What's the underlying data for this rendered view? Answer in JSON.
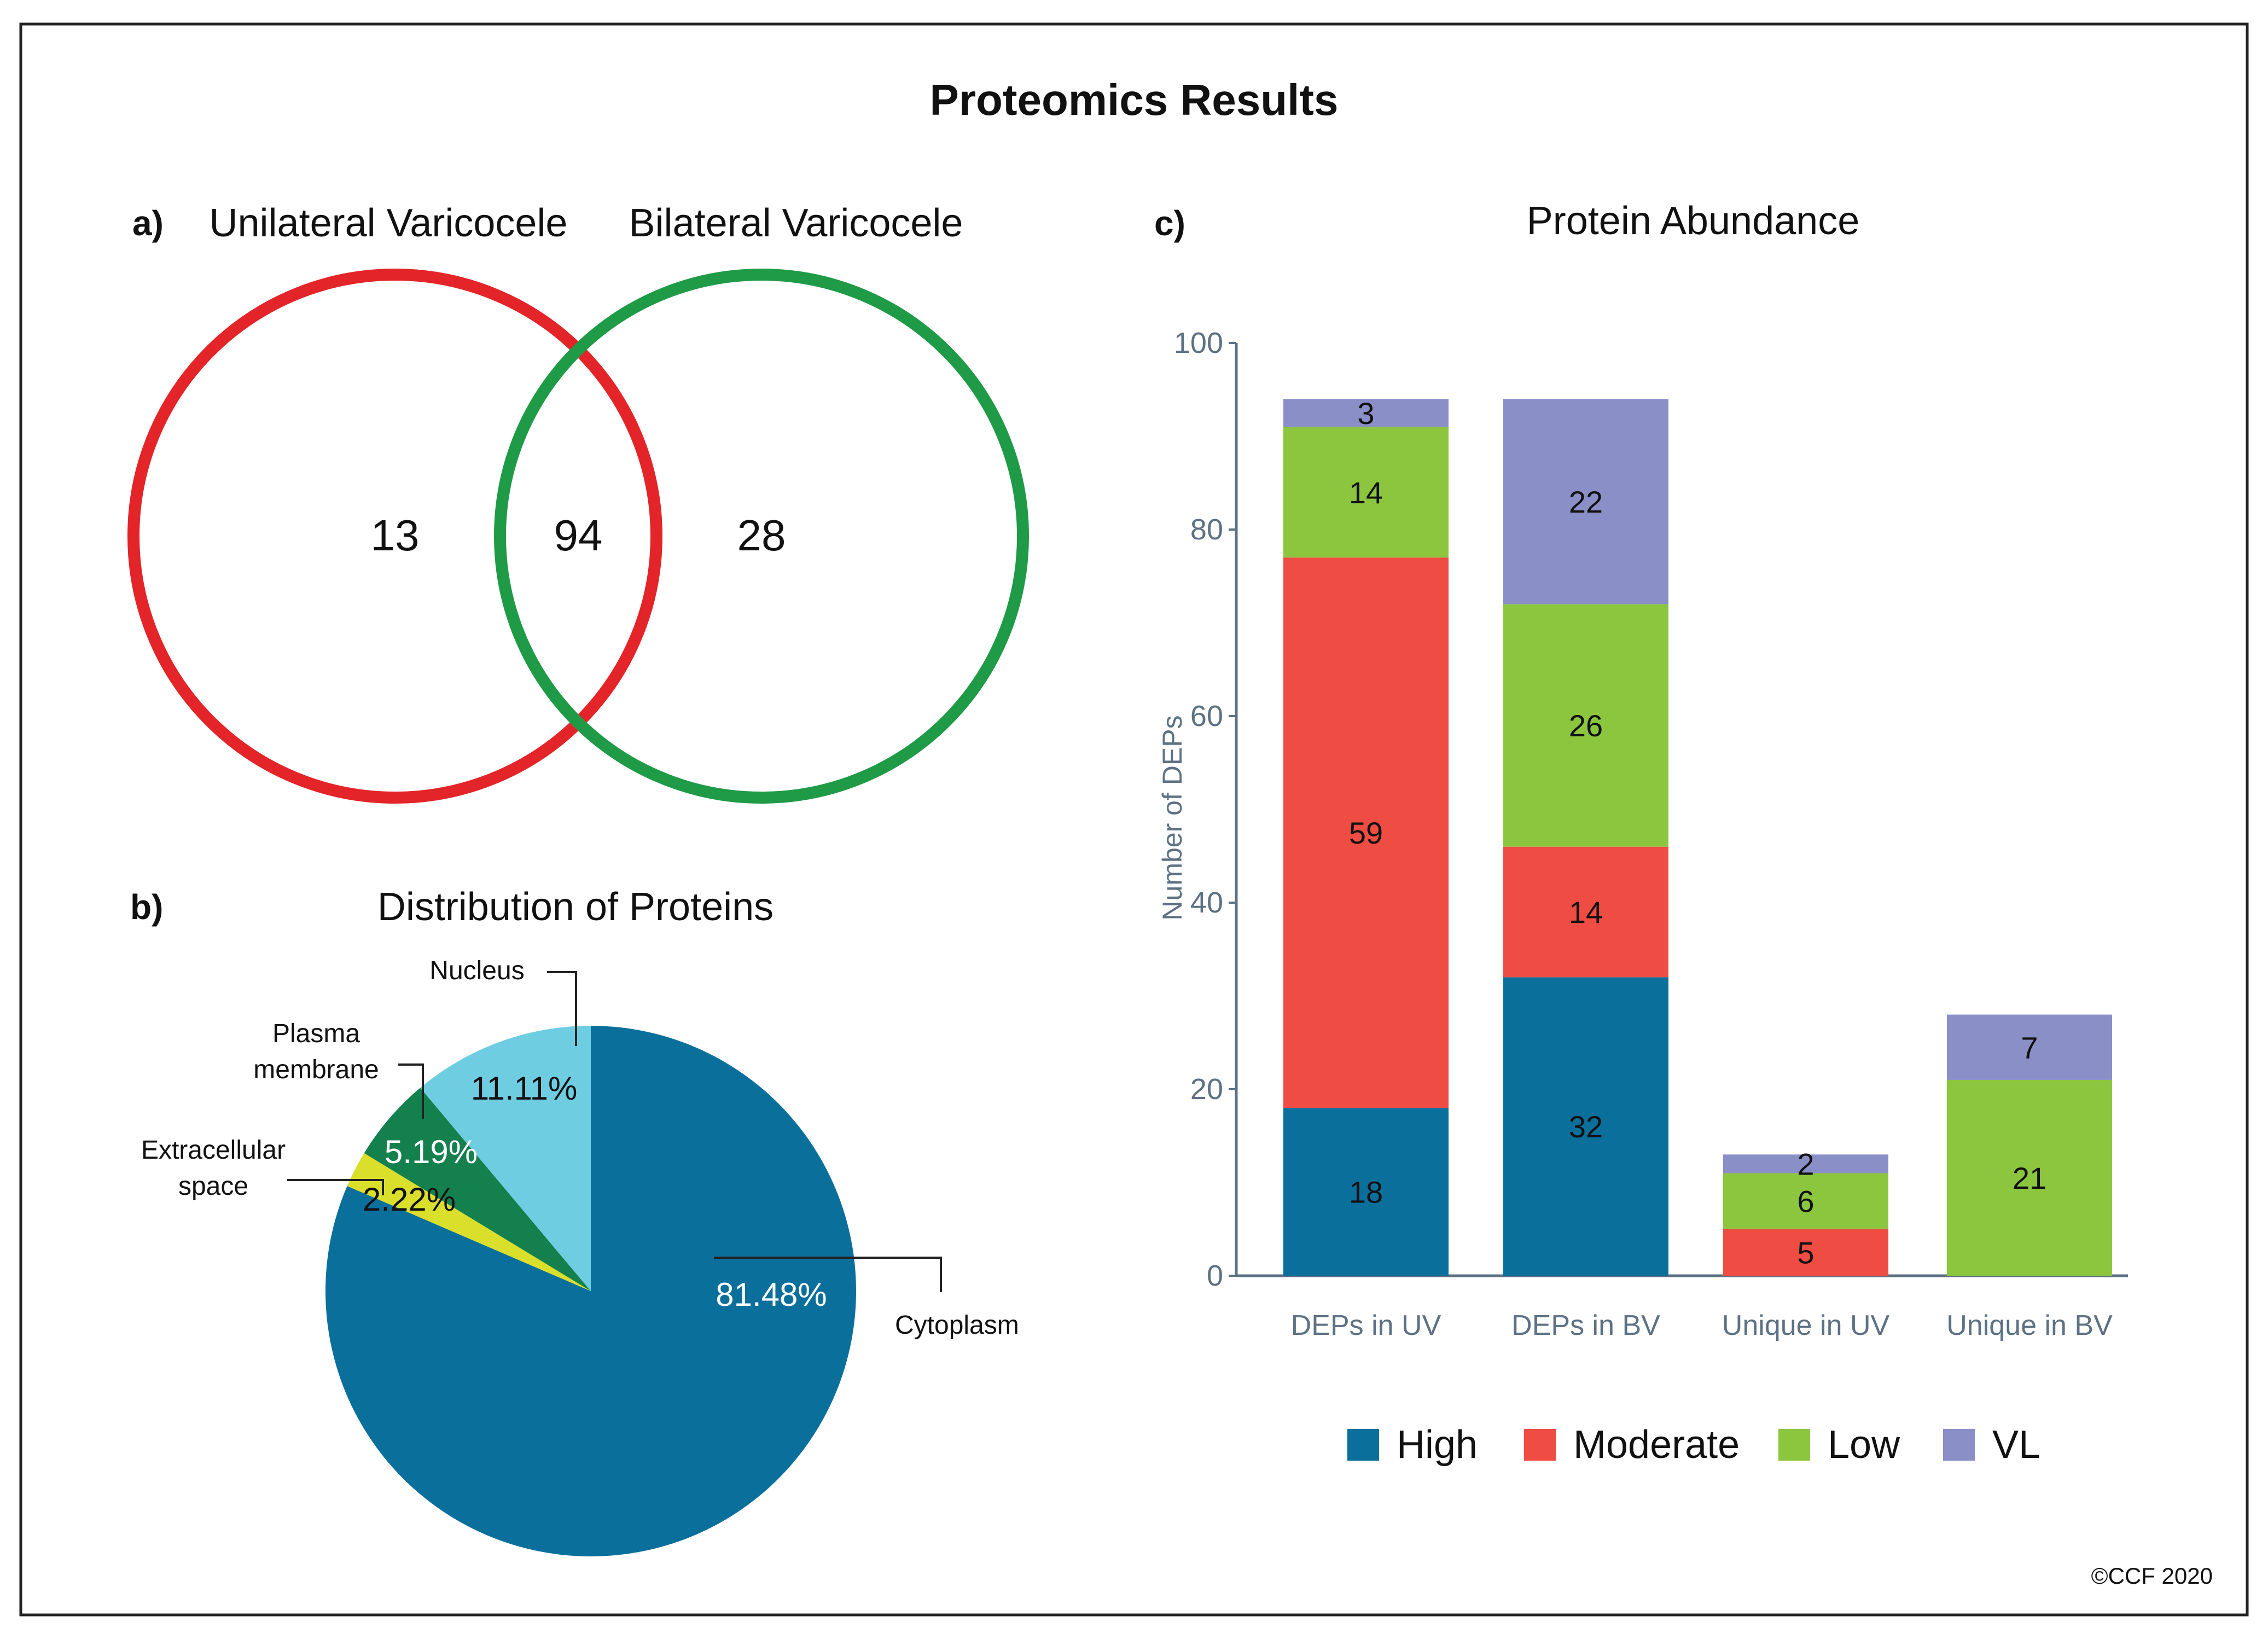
{
  "figure": {
    "title": "Proteomics Results",
    "copyright": "©CCF 2020"
  },
  "colors": {
    "red": "#e32428",
    "green": "#1f9a46",
    "high": "#0b6f9c",
    "moderate": "#ef4c43",
    "low": "#8cc63f",
    "vl": "#8a8fc7",
    "pie_cytoplasm": "#0b6f9c",
    "pie_nucleus": "#6fcde1",
    "pie_plasma": "#14804e",
    "pie_extracellular": "#d9df2a",
    "axis": "#5d7184"
  },
  "chart_data": [
    {
      "type": "venn",
      "panel_label": "a)",
      "sets": [
        {
          "name": "Unilateral Varicocele",
          "only": 13
        },
        {
          "name": "Bilateral Varicocele",
          "only": 28
        }
      ],
      "overlap": 94
    },
    {
      "type": "pie",
      "panel_label": "b)",
      "title": "Distribution of Proteins",
      "slices": [
        {
          "label": "Cytoplasm",
          "value": 81.48,
          "value_label": "81.48%"
        },
        {
          "label": "Extracellular\nspace",
          "value": 2.22,
          "value_label": "2.22%"
        },
        {
          "label": "Plasma\nmembrane",
          "value": 5.19,
          "value_label": "5.19%"
        },
        {
          "label": "Nucleus",
          "value": 11.11,
          "value_label": "11.11%"
        }
      ]
    },
    {
      "type": "bar",
      "stacked": true,
      "panel_label": "c)",
      "title": "Protein Abundance",
      "ylabel": "Number of DEPs",
      "ylim": [
        0,
        100
      ],
      "yticks": [
        "0",
        "20",
        "40",
        "60",
        "80",
        "100"
      ],
      "categories": [
        "DEPs in UV",
        "DEPs in BV",
        "Unique in UV",
        "Unique in BV"
      ],
      "series": [
        {
          "name": "High",
          "values": [
            18,
            32,
            0,
            0
          ]
        },
        {
          "name": "Moderate",
          "values": [
            59,
            14,
            5,
            0
          ]
        },
        {
          "name": "Low",
          "values": [
            14,
            26,
            6,
            21
          ]
        },
        {
          "name": "VL",
          "values": [
            3,
            22,
            2,
            7
          ]
        }
      ],
      "legend_position": "bottom"
    }
  ]
}
